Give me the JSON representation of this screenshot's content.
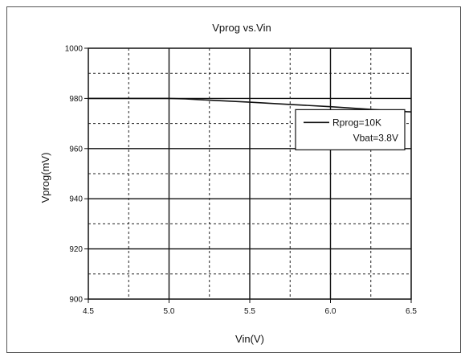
{
  "chart_data": {
    "type": "line",
    "title": "Vprog vs.Vin",
    "xlabel": "Vin(V)",
    "ylabel": "Vprog(mV)",
    "xlim": [
      4.5,
      6.5
    ],
    "ylim": [
      900,
      1000
    ],
    "xticks": [
      4.5,
      5.0,
      5.5,
      6.0,
      6.5
    ],
    "xtick_labels": [
      "4.5",
      "5.0",
      "5.5",
      "6.0",
      "6.5"
    ],
    "yticks": [
      900,
      920,
      940,
      960,
      980,
      1000
    ],
    "ytick_labels": [
      "900",
      "920",
      "940",
      "960",
      "980",
      "1000"
    ],
    "grid": true,
    "grid_minor": true,
    "legend_position": "right",
    "legend_lines": [
      "Rprog=10K",
      "Vbat=3.8V"
    ],
    "series": [
      {
        "color": "#111111",
        "x": [
          4.5,
          4.75,
          5.0,
          5.1,
          5.25,
          5.5,
          5.75,
          6.0,
          6.25,
          6.5
        ],
        "y": [
          980,
          980,
          980,
          979.8,
          979.3,
          978.5,
          977.6,
          976.7,
          975.6,
          974.6
        ]
      }
    ]
  }
}
